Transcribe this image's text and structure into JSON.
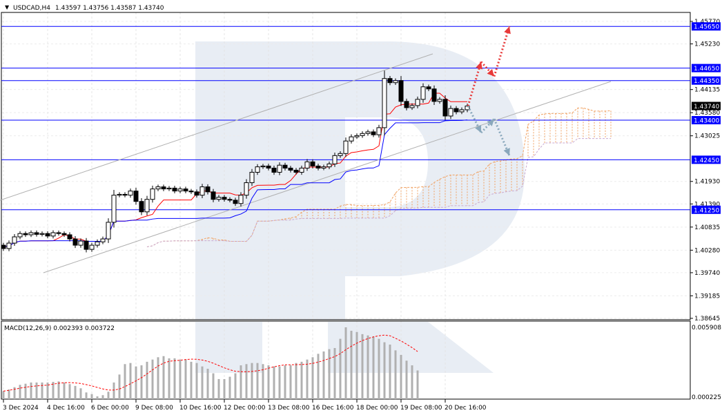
{
  "header": {
    "symbol_icon": "triangle-down-icon",
    "title": "USDCAD,H4",
    "ohlc": "1.43597 1.43756 1.43587 1.43740"
  },
  "macd_header": "MACD(12,26,9) 0.002393 0.003722",
  "colors": {
    "level_line": "#0000ff",
    "bull_arrow": "#e83a3a",
    "bear_arrow": "#8aa8bc",
    "tenkan": "#ff0000",
    "kijun": "#0000ff",
    "senkou_a": "#f0a060",
    "senkou_b": "#c8a8d0",
    "channel": "#b0b0b0",
    "histogram": "#b0b0b0",
    "signal": "#ff0000",
    "watermark": "#e8edf4"
  },
  "chart_data": [
    {
      "type": "candlestick",
      "symbol": "USDCAD",
      "timeframe": "H4",
      "ylim": [
        1.38645,
        1.4577
      ],
      "price_ticks": [
        "1.45770",
        "1.45230",
        "1.44135",
        "1.43580",
        "1.43025",
        "1.41930",
        "1.41390",
        "1.40835",
        "1.40280",
        "1.39740",
        "1.39185",
        "1.38645"
      ],
      "levels": [
        "1.45650",
        "1.44650",
        "1.44350",
        "1.43400",
        "1.42450",
        "1.41250"
      ],
      "current_price": "1.43740",
      "x_labels": [
        "3 Dec 2024",
        "4 Dec 16:00",
        "6 Dec 00:00",
        "9 Dec 08:00",
        "10 Dec 16:00",
        "12 Dec 00:00",
        "13 Dec 08:00",
        "16 Dec 16:00",
        "18 Dec 00:00",
        "19 Dec 08:00",
        "20 Dec 16:00"
      ],
      "first_open": 1.404,
      "closes": [
        1.4032,
        1.4045,
        1.406,
        1.4068,
        1.4065,
        1.407,
        1.4066,
        1.4068,
        1.4062,
        1.407,
        1.4068,
        1.4065,
        1.4055,
        1.404,
        1.405,
        1.403,
        1.404,
        1.4048,
        1.4055,
        1.4095,
        1.416,
        1.4162,
        1.416,
        1.417,
        1.4145,
        1.412,
        1.415,
        1.4175,
        1.418,
        1.4175,
        1.4177,
        1.417,
        1.4175,
        1.417,
        1.4168,
        1.416,
        1.418,
        1.4168,
        1.415,
        1.4155,
        1.415,
        1.4148,
        1.414,
        1.416,
        1.419,
        1.4215,
        1.4228,
        1.423,
        1.4225,
        1.4215,
        1.4232,
        1.4225,
        1.422,
        1.4215,
        1.4225,
        1.424,
        1.423,
        1.4225,
        1.4228,
        1.4235,
        1.4255,
        1.426,
        1.429,
        1.43,
        1.4303,
        1.4308,
        1.4312,
        1.4305,
        1.4322,
        1.444,
        1.443,
        1.4435,
        1.4385,
        1.437,
        1.4375,
        1.439,
        1.442,
        1.4415,
        1.4385,
        1.439,
        1.435,
        1.4368,
        1.436,
        1.4365,
        1.4374
      ],
      "forecast_up": [
        1.4374,
        1.448,
        1.4445,
        1.4565
      ],
      "forecast_down": [
        1.4374,
        1.431,
        1.4343,
        1.4255
      ]
    },
    {
      "type": "bar",
      "name": "MACD(12,26,9)",
      "ylim": [
        0.000225,
        0.005908
      ],
      "tick_labels": [
        "0.005908",
        "0.000225"
      ],
      "histogram": [
        0.00071,
        0.00084,
        0.00103,
        0.00122,
        0.00131,
        0.00141,
        0.00141,
        0.00141,
        0.00141,
        0.00146,
        0.0015,
        0.00141,
        0.00128,
        0.00113,
        0.00094,
        0.0006,
        0.00047,
        0.00028,
        0.00038,
        0.00066,
        0.00141,
        0.00206,
        0.00291,
        0.003,
        0.00272,
        0.00281,
        0.0031,
        0.00328,
        0.00347,
        0.00356,
        0.00338,
        0.00338,
        0.00328,
        0.00328,
        0.0031,
        0.003,
        0.00272,
        0.00253,
        0.00216,
        0.00169,
        0.00169,
        0.00188,
        0.00216,
        0.00281,
        0.00291,
        0.003,
        0.003,
        0.00291,
        0.00281,
        0.00272,
        0.00272,
        0.00281,
        0.00281,
        0.003,
        0.0031,
        0.00328,
        0.00347,
        0.00375,
        0.00394,
        0.00413,
        0.00422,
        0.00497,
        0.00591,
        0.00563,
        0.00553,
        0.00535,
        0.00525,
        0.00516,
        0.00497,
        0.00469,
        0.0045,
        0.00403,
        0.00366,
        0.00319,
        0.00281,
        0.002393
      ]
    }
  ]
}
